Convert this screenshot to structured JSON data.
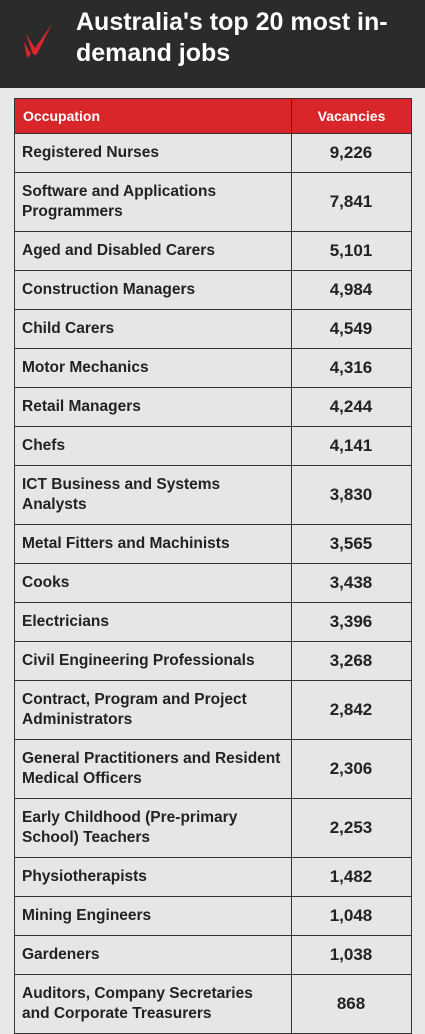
{
  "header": {
    "title": "Australia's top 20 most in-demand jobs"
  },
  "table": {
    "columns": [
      "Occupation",
      "Vacancies"
    ],
    "rows": [
      [
        "Registered Nurses",
        "9,226"
      ],
      [
        "Software and Applications Programmers",
        "7,841"
      ],
      [
        "Aged and Disabled Carers",
        "5,101"
      ],
      [
        "Construction Managers",
        "4,984"
      ],
      [
        "Child Carers",
        "4,549"
      ],
      [
        "Motor Mechanics",
        "4,316"
      ],
      [
        "Retail Managers",
        "4,244"
      ],
      [
        "Chefs",
        "4,141"
      ],
      [
        "ICT Business and Systems Analysts",
        "3,830"
      ],
      [
        "Metal Fitters and Machinists",
        "3,565"
      ],
      [
        "Cooks",
        "3,438"
      ],
      [
        "Electricians",
        "3,396"
      ],
      [
        "Civil Engineering Professionals",
        "3,268"
      ],
      [
        "Contract, Program and Project Administrators",
        "2,842"
      ],
      [
        "General Practitioners and Resident Medical Officers",
        "2,306"
      ],
      [
        "Early Childhood (Pre-primary School) Teachers",
        "2,253"
      ],
      [
        "Physiotherapists",
        "1,482"
      ],
      [
        "Mining Engineers",
        "1,048"
      ],
      [
        "Gardeners",
        "1,038"
      ],
      [
        "Auditors, Company Secretaries and Corporate Treasurers",
        "868"
      ]
    ]
  }
}
